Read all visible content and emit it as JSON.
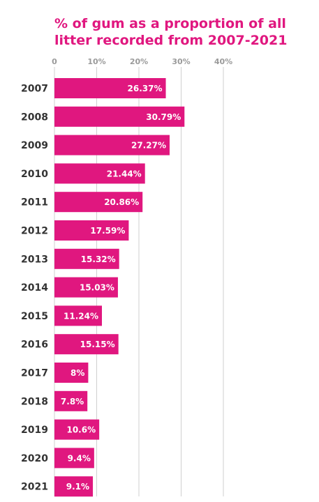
{
  "chart_data": {
    "type": "bar",
    "orientation": "horizontal",
    "title": "% of gum as a proportion of all litter recorded from 2007-2021",
    "categories": [
      "2007",
      "2008",
      "2009",
      "2010",
      "2011",
      "2012",
      "2013",
      "2014",
      "2015",
      "2016",
      "2017",
      "2018",
      "2019",
      "2020",
      "2021"
    ],
    "values": [
      26.37,
      30.79,
      27.27,
      21.44,
      20.86,
      17.59,
      15.32,
      15.03,
      11.24,
      15.15,
      8,
      7.8,
      10.6,
      9.4,
      9.1
    ],
    "data_labels": [
      "26.37%",
      "30.79%",
      "27.27%",
      "21.44%",
      "20.86%",
      "17.59%",
      "15.32%",
      "15.03%",
      "11.24%",
      "15.15%",
      "8%",
      "7.8%",
      "10.6%",
      "9.4%",
      "9.1%"
    ],
    "x_ticks": [
      0,
      10,
      20,
      30,
      40
    ],
    "x_tick_labels": [
      "0",
      "10%",
      "20%",
      "30%",
      "40%"
    ],
    "xlim": [
      0,
      40
    ],
    "xlabel": "",
    "ylabel": "",
    "grid": true,
    "legend": "none",
    "bar_color": "#e0177f",
    "title_color": "#e0177f",
    "grid_color": "#cfcfcf"
  }
}
